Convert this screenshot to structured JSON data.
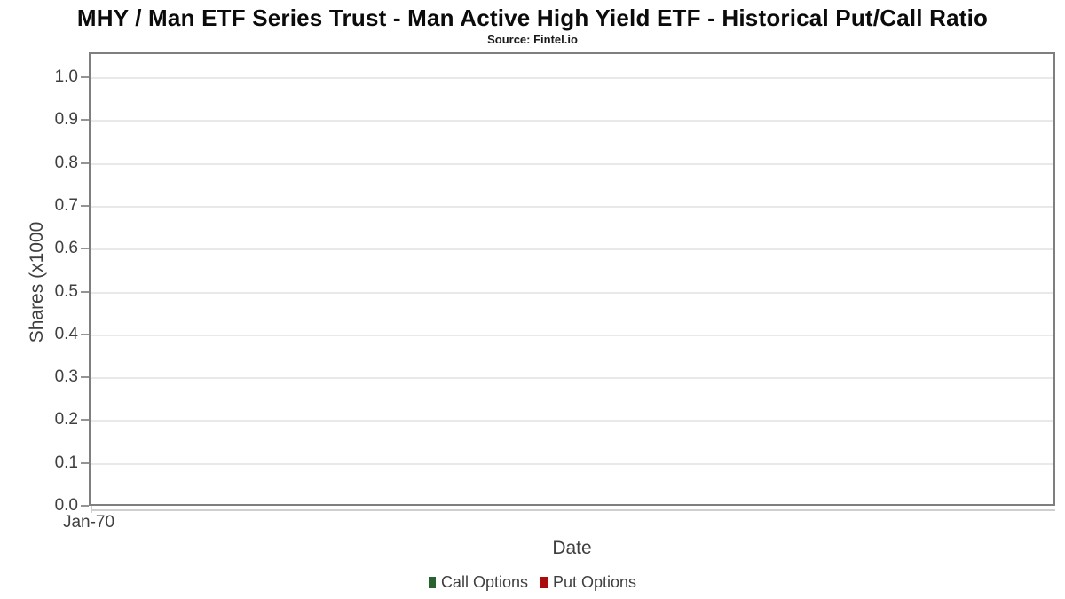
{
  "chart_data": {
    "type": "line",
    "title": "MHY / Man ETF Series Trust - Man Active High Yield ETF - Historical Put/Call Ratio",
    "subtitle": "Source: Fintel.io",
    "xlabel": "Date",
    "ylabel": "Shares (x1000",
    "x_tick_labels": [
      "Jan-70"
    ],
    "y_ticks": [
      "1.0",
      "0.9",
      "0.8",
      "0.7",
      "0.6",
      "0.5",
      "0.4",
      "0.3",
      "0.2",
      "0.1",
      "0.0"
    ],
    "ylim": [
      0.0,
      1.05
    ],
    "grid": "horizontal",
    "legend_position": "bottom-center",
    "series": [
      {
        "name": "Call Options",
        "color": "#28622f",
        "values": []
      },
      {
        "name": "Put Options",
        "color": "#aa0b0b",
        "values": []
      }
    ],
    "colors": {
      "plot_border": "#7f7f7f",
      "gridline": "#e9e9e9",
      "axis_line": "#cfcfcf",
      "tick": "#949494",
      "axis_text": "#3f3f3f",
      "title_text": "#0b0b0b"
    }
  }
}
